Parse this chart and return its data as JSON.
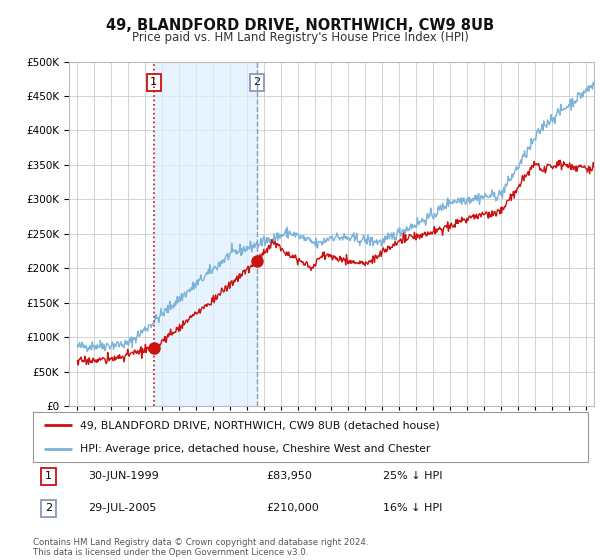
{
  "title": "49, BLANDFORD DRIVE, NORTHWICH, CW9 8UB",
  "subtitle": "Price paid vs. HM Land Registry's House Price Index (HPI)",
  "ylim": [
    0,
    500000
  ],
  "yticks": [
    0,
    50000,
    100000,
    150000,
    200000,
    250000,
    300000,
    350000,
    400000,
    450000,
    500000
  ],
  "hpi_color": "#7bb3d9",
  "price_color": "#cc1111",
  "vline1_color": "#cc1111",
  "vline2_color": "#8899bb",
  "purchase1_year": 1999.5,
  "purchase2_year": 2005.58,
  "purchase1_price": 83950,
  "purchase2_price": 210000,
  "legend_label_price": "49, BLANDFORD DRIVE, NORTHWICH, CW9 8UB (detached house)",
  "legend_label_hpi": "HPI: Average price, detached house, Cheshire West and Chester",
  "table_row1": [
    "1",
    "30-JUN-1999",
    "£83,950",
    "25% ↓ HPI"
  ],
  "table_row2": [
    "2",
    "29-JUL-2005",
    "£210,000",
    "16% ↓ HPI"
  ],
  "footer": "Contains HM Land Registry data © Crown copyright and database right 2024.\nThis data is licensed under the Open Government Licence v3.0.",
  "bg_color": "#ffffff",
  "grid_color": "#cccccc",
  "shade_color": "#ddeeff",
  "ann1_box_color": "#cc1111",
  "ann2_box_color": "#8899bb",
  "xlim_left": 1994.5,
  "xlim_right": 2025.5
}
